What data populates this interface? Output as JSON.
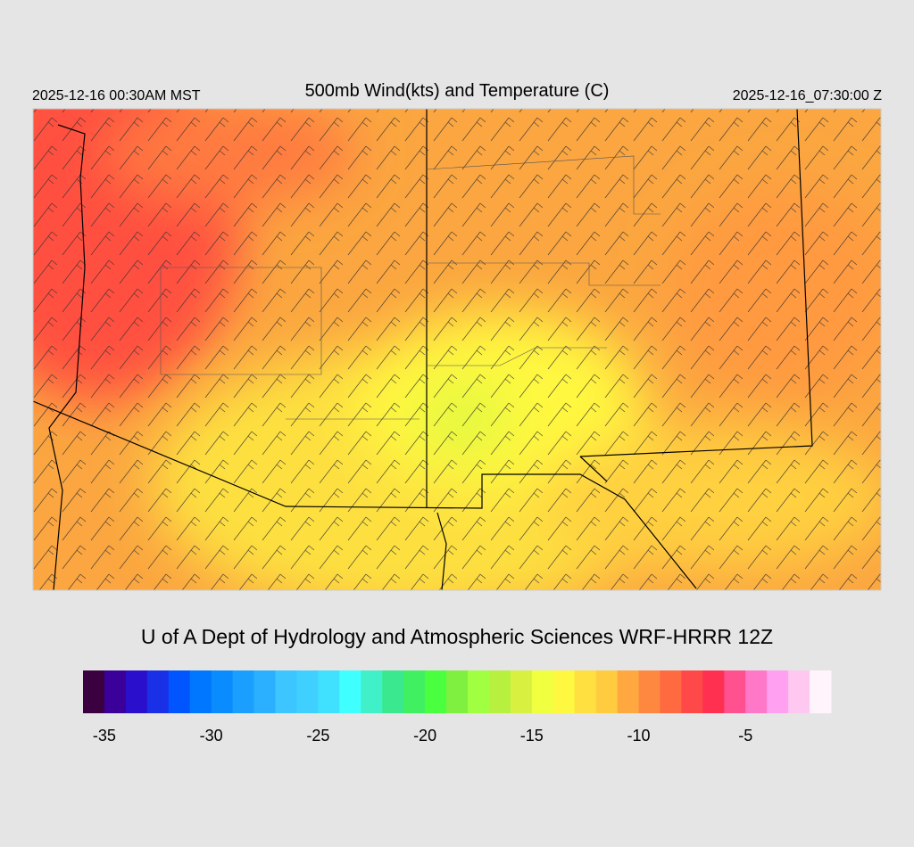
{
  "header": {
    "left": "2025-12-16 00:30AM MST",
    "title": "500mb Wind(kts) and Temperature (C)",
    "right": "2025-12-16_07:30:00 Z"
  },
  "credit": "U of A Dept of Hydrology and Atmospheric Sciences WRF-HRRR 12Z",
  "colorbar": {
    "range": [
      -36,
      -1
    ],
    "ticks": [
      -35,
      -30,
      -25,
      -20,
      -15,
      -10,
      -5
    ],
    "colors": [
      "#3a0040",
      "#3a0099",
      "#2a10cc",
      "#1a30e6",
      "#0055ff",
      "#0077ff",
      "#0a8cff",
      "#1a9fff",
      "#2ab0ff",
      "#3cc5ff",
      "#40d0ff",
      "#40e0ff",
      "#40ffff",
      "#3ff0c8",
      "#3ae890",
      "#40f060",
      "#4aff40",
      "#80f040",
      "#a0ff40",
      "#b8f040",
      "#d8f040",
      "#f0ff40",
      "#fff840",
      "#ffe040",
      "#ffcc40",
      "#ffa840",
      "#ff8840",
      "#ff6a40",
      "#ff4848",
      "#ff3050",
      "#ff5090",
      "#ff78c8",
      "#ffa0f0",
      "#ffc8f0",
      "#fff4fc"
    ]
  }
}
